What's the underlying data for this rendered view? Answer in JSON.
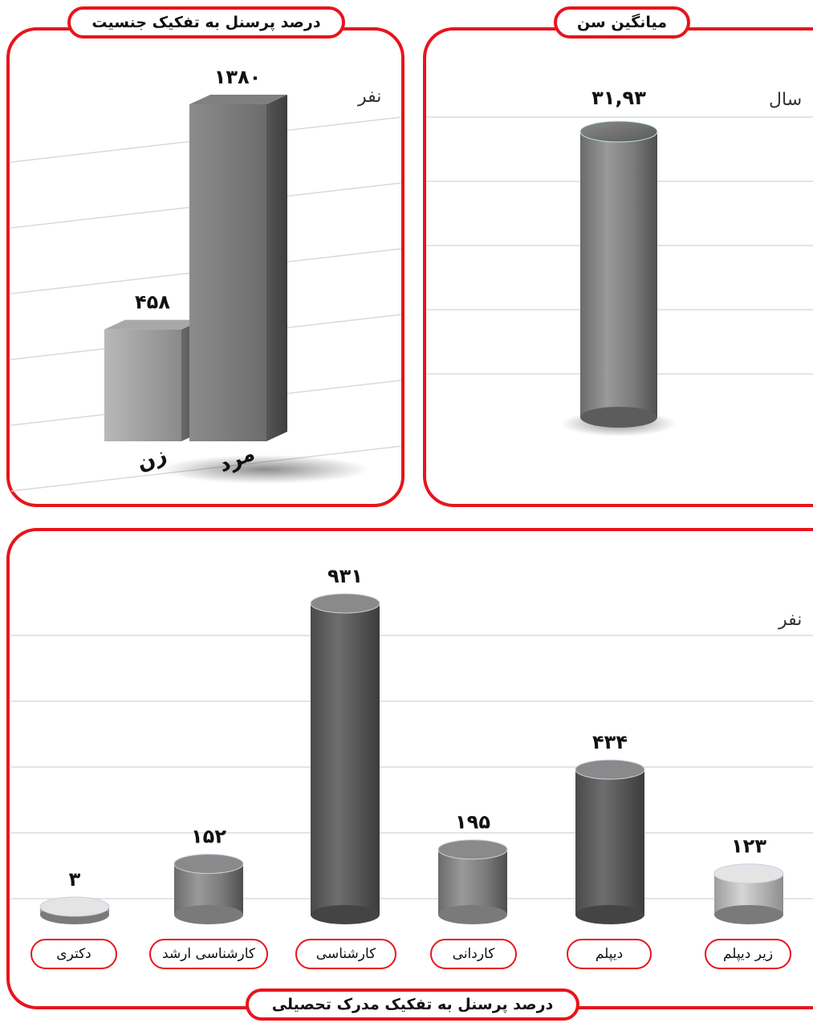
{
  "colors": {
    "accent": "#e8141c",
    "bar_dark": "#555555",
    "bar_light": "#bdbdbd"
  },
  "titles": {
    "gender": "درصد پرسنل به تفکیک جنسیت",
    "age": "میانگین سن",
    "education": "درصد پرسنل به تفکیک مدرک تحصیلی"
  },
  "units": {
    "gender": "نفر",
    "age": "سال",
    "education": "نفر"
  },
  "chart_data": [
    {
      "type": "bar",
      "title": "درصد پرسنل به تفکیک جنسیت",
      "ylabel": "نفر",
      "categories": [
        "زن",
        "مرد"
      ],
      "values": [
        458,
        1380
      ],
      "value_labels": [
        "۴۵۸",
        "۱۳۸۰"
      ],
      "grid": true
    },
    {
      "type": "bar",
      "title": "میانگین سن",
      "ylabel": "سال",
      "categories": [
        ""
      ],
      "values": [
        31.93
      ],
      "value_labels": [
        "۳۱,۹۳"
      ],
      "grid": true
    },
    {
      "type": "bar",
      "title": "درصد پرسنل به تفکیک مدرک تحصیلی",
      "ylabel": "نفر",
      "categories": [
        "دکتری",
        "کارشناسی ارشد",
        "کارشناسی",
        "کاردانی",
        "دیپلم",
        "زیر دیپلم"
      ],
      "values": [
        3,
        152,
        931,
        195,
        434,
        123
      ],
      "value_labels": [
        "۳",
        "۱۵۲",
        "۹۳۱",
        "۱۹۵",
        "۴۳۴",
        "۱۲۳"
      ],
      "grid": true
    }
  ]
}
